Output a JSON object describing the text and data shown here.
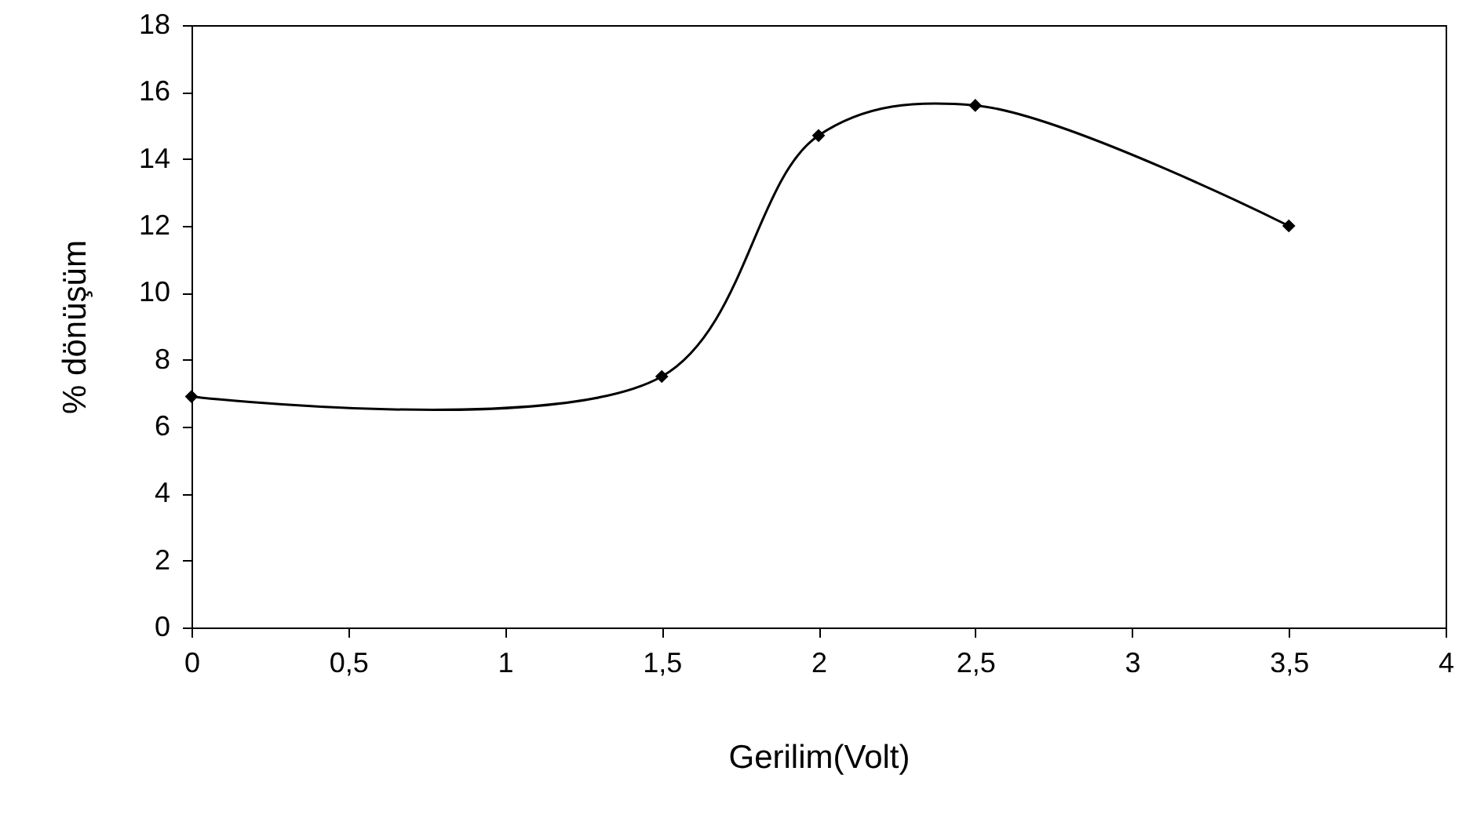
{
  "chart_data": {
    "type": "line",
    "xlabel": "Gerilim(Volt)",
    "ylabel": "% dönüşüm",
    "x": [
      0,
      1.5,
      2,
      2.5,
      3.5
    ],
    "series": [
      {
        "color": "#000000",
        "values": [
          6.9,
          7.5,
          14.7,
          15.6,
          12.0
        ]
      }
    ],
    "xlim": [
      0,
      4
    ],
    "xticks": [
      0,
      {
        "value": 0.5,
        "label": "0,5"
      },
      1,
      {
        "value": 1.5,
        "label": "1,5"
      },
      2,
      {
        "value": 2.5,
        "label": "2,5"
      },
      3,
      {
        "value": 3.5,
        "label": "3,5"
      },
      4
    ],
    "ylim": [
      0,
      18
    ],
    "yticks": [
      0,
      2,
      4,
      6,
      8,
      10,
      12,
      14,
      16,
      18
    ],
    "grid": false,
    "marker": "diamond",
    "line_style": "solid"
  }
}
